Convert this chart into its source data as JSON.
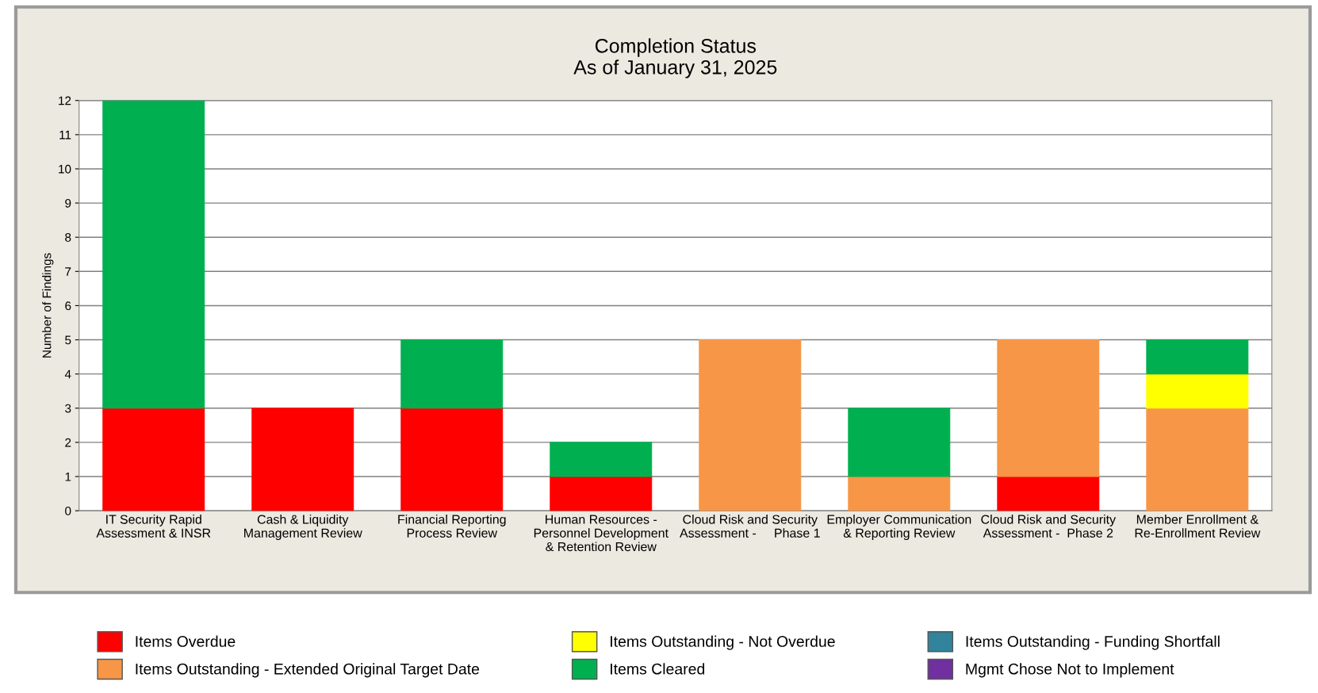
{
  "chart_data": {
    "type": "bar",
    "stacked": true,
    "title": "Completion Status\nAs of January 31, 2025",
    "ylabel": "Number of Findings",
    "categories": [
      "IT Security Rapid\nAssessment & INSR",
      "Cash & Liquidity\nManagement Review",
      "Financial Reporting\nProcess Review",
      "Human Resources -\nPersonnel Development\n& Retention Review",
      "Cloud Risk and Security\nAssessment -     Phase 1",
      "Employer Communication\n& Reporting Review",
      "Cloud Risk and Security\nAssessment -  Phase 2",
      "Member Enrollment &\nRe-Enrollment Review"
    ],
    "series": [
      {
        "name": "Items Overdue",
        "color": "#ff0000",
        "values": [
          3,
          3,
          3,
          1,
          0,
          0,
          1,
          0
        ]
      },
      {
        "name": "Items Outstanding - Extended Original Target Date",
        "color": "#f79646",
        "values": [
          0,
          0,
          0,
          0,
          5,
          1,
          4,
          3
        ]
      },
      {
        "name": "Items Outstanding - Not Overdue",
        "color": "#ffff00",
        "values": [
          0,
          0,
          0,
          0,
          0,
          0,
          0,
          1
        ]
      },
      {
        "name": "Items Cleared",
        "color": "#00b050",
        "values": [
          9,
          0,
          2,
          1,
          0,
          2,
          0,
          1
        ]
      },
      {
        "name": "Items Outstanding - Funding Shortfall",
        "color": "#31849b",
        "values": [
          0,
          0,
          0,
          0,
          0,
          0,
          0,
          0
        ]
      },
      {
        "name": "Mgmt Chose Not to Implement",
        "color": "#7030a0",
        "values": [
          0,
          0,
          0,
          0,
          0,
          0,
          0,
          0
        ]
      }
    ],
    "ylim": [
      0,
      12
    ],
    "yticks": [
      0,
      1,
      2,
      3,
      4,
      5,
      6,
      7,
      8,
      9,
      10,
      11,
      12
    ],
    "grid": "y",
    "legend": "bottom"
  }
}
